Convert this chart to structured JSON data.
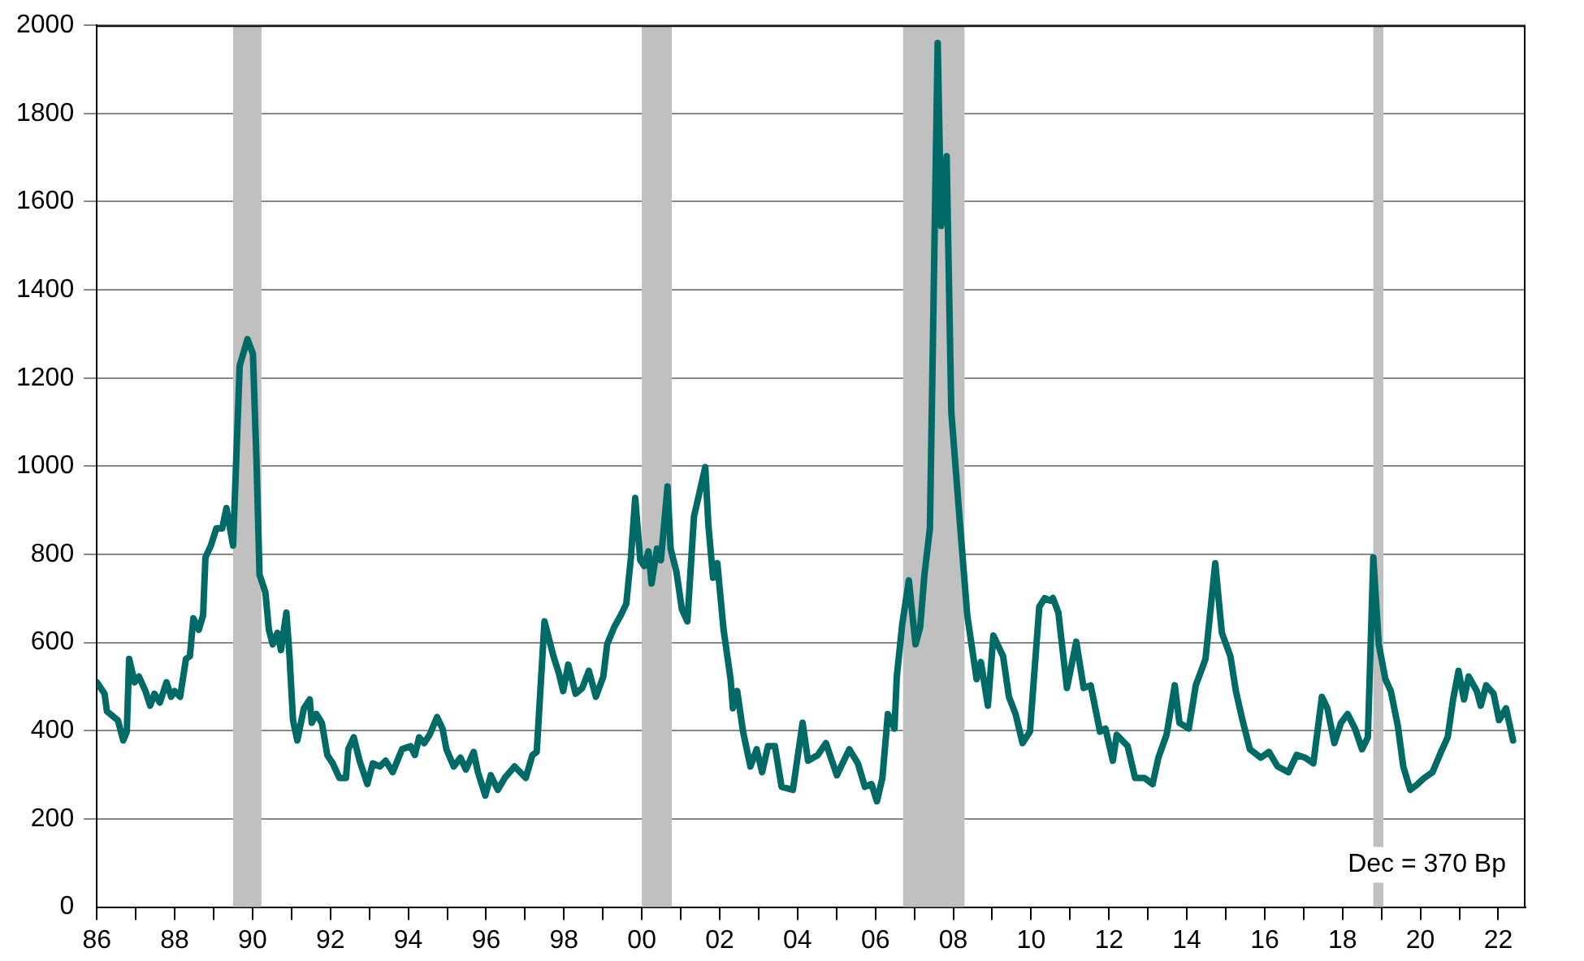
{
  "chart_data": {
    "type": "line",
    "color": "#006b66",
    "marker": "none",
    "grid": "y",
    "x": [
      1986.0,
      1986.2,
      1986.26,
      1986.54,
      1986.68,
      1986.77,
      1986.83,
      1986.97,
      1987.08,
      1987.25,
      1987.37,
      1987.48,
      1987.62,
      1987.79,
      1987.91,
      1988.0,
      1988.14,
      1988.29,
      1988.39,
      1988.48,
      1988.62,
      1988.73,
      1988.79,
      1988.93,
      1989.07,
      1989.22,
      1989.33,
      1989.5,
      1989.67,
      1989.87,
      1990.01,
      1990.1,
      1990.18,
      1990.33,
      1990.42,
      1990.52,
      1990.64,
      1990.73,
      1990.87,
      1990.95,
      1991.04,
      1991.15,
      1991.32,
      1991.47,
      1991.52,
      1991.64,
      1991.78,
      1991.92,
      1992.06,
      1992.23,
      1992.4,
      1992.46,
      1992.6,
      1992.75,
      1992.95,
      1993.09,
      1993.27,
      1993.42,
      1993.6,
      1993.84,
      1994.06,
      1994.17,
      1994.28,
      1994.41,
      1994.55,
      1994.74,
      1994.88,
      1994.98,
      1995.17,
      1995.34,
      1995.48,
      1995.68,
      1995.79,
      1995.98,
      1996.12,
      1996.3,
      1996.48,
      1996.73,
      1997.02,
      1997.19,
      1997.3,
      1997.5,
      1997.73,
      1997.87,
      1997.98,
      1998.11,
      1998.3,
      1998.47,
      1998.64,
      1998.82,
      1999.01,
      1999.11,
      1999.29,
      1999.46,
      1999.6,
      1999.72,
      1999.83,
      1999.96,
      2000.06,
      2000.17,
      2000.25,
      2000.39,
      2000.49,
      2000.66,
      2000.74,
      2000.89,
      2001.03,
      2001.17,
      2001.34,
      2001.63,
      2001.71,
      2001.83,
      2001.94,
      2002.1,
      2002.28,
      2002.34,
      2002.45,
      2002.6,
      2002.79,
      2002.95,
      2003.09,
      2003.24,
      2003.42,
      2003.59,
      2003.88,
      2004.13,
      2004.27,
      2004.52,
      2004.73,
      2005.01,
      2005.33,
      2005.55,
      2005.73,
      2005.9,
      2006.04,
      2006.18,
      2006.32,
      2006.49,
      2006.55,
      2006.69,
      2006.86,
      2007.03,
      2007.15,
      2007.26,
      2007.4,
      2007.6,
      2007.69,
      2007.83,
      2007.95,
      2008.17,
      2008.36,
      2008.6,
      2008.71,
      2008.89,
      2009.03,
      2009.28,
      2009.43,
      2009.6,
      2009.78,
      2009.97,
      2010.21,
      2010.35,
      2010.49,
      2010.56,
      2010.7,
      2010.92,
      2011.16,
      2011.35,
      2011.53,
      2011.77,
      2011.91,
      2012.1,
      2012.2,
      2012.48,
      2012.67,
      2012.91,
      2013.12,
      2013.27,
      2013.48,
      2013.69,
      2013.81,
      2014.05,
      2014.23,
      2014.48,
      2014.73,
      2014.9,
      2015.12,
      2015.26,
      2015.43,
      2015.62,
      2015.9,
      2016.11,
      2016.33,
      2016.61,
      2016.82,
      2017.04,
      2017.25,
      2017.47,
      2017.61,
      2017.79,
      2017.96,
      2018.13,
      2018.32,
      2018.5,
      2018.65,
      2018.79,
      2018.93,
      2019.1,
      2019.24,
      2019.42,
      2019.56,
      2019.74,
      2019.93,
      2020.1,
      2020.31,
      2020.53,
      2020.7,
      2020.84,
      2020.98,
      2021.12,
      2021.24,
      2021.45,
      2021.55,
      2021.69,
      2021.88,
      2022.02,
      2022.2,
      2022.38
    ],
    "values": [
      510,
      484,
      444,
      424,
      378,
      398,
      563,
      510,
      523,
      490,
      457,
      484,
      464,
      510,
      477,
      490,
      477,
      563,
      569,
      655,
      629,
      662,
      793,
      820,
      859,
      859,
      905,
      820,
      1228,
      1288,
      1255,
      1017,
      754,
      714,
      629,
      596,
      622,
      583,
      668,
      569,
      424,
      378,
      451,
      471,
      418,
      438,
      418,
      345,
      326,
      293,
      293,
      358,
      385,
      332,
      279,
      326,
      319,
      332,
      306,
      358,
      365,
      345,
      385,
      372,
      391,
      431,
      405,
      358,
      319,
      339,
      312,
      352,
      306,
      253,
      299,
      266,
      293,
      319,
      293,
      345,
      352,
      648,
      569,
      530,
      490,
      550,
      484,
      497,
      536,
      477,
      523,
      596,
      635,
      662,
      688,
      793,
      928,
      787,
      774,
      807,
      734,
      813,
      787,
      954,
      813,
      760,
      675,
      648,
      886,
      998,
      866,
      747,
      780,
      629,
      517,
      451,
      490,
      398,
      319,
      358,
      306,
      365,
      365,
      273,
      266,
      418,
      332,
      345,
      372,
      299,
      358,
      326,
      273,
      279,
      240,
      293,
      438,
      405,
      523,
      642,
      741,
      596,
      635,
      754,
      859,
      1960,
      1545,
      1703,
      1123,
      872,
      662,
      517,
      556,
      457,
      616,
      569,
      477,
      438,
      372,
      398,
      681,
      701,
      695,
      701,
      668,
      497,
      602,
      497,
      503,
      398,
      405,
      332,
      391,
      365,
      293,
      293,
      279,
      339,
      391,
      503,
      418,
      405,
      503,
      563,
      780,
      622,
      569,
      490,
      424,
      358,
      339,
      352,
      319,
      306,
      345,
      339,
      326,
      477,
      451,
      372,
      418,
      438,
      405,
      358,
      385,
      793,
      596,
      517,
      490,
      411,
      319,
      266,
      279,
      293,
      306,
      352,
      385,
      471,
      536,
      471,
      523,
      490,
      457,
      503,
      484,
      424,
      451,
      378
    ],
    "xlim": [
      1986,
      2022.7
    ],
    "xticks": [
      {
        "value": 1986,
        "label": "86"
      },
      {
        "value": 1987,
        "label": null
      },
      {
        "value": 1988,
        "label": "88"
      },
      {
        "value": 1989,
        "label": null
      },
      {
        "value": 1990,
        "label": "90"
      },
      {
        "value": 1991,
        "label": null
      },
      {
        "value": 1992,
        "label": "92"
      },
      {
        "value": 1993,
        "label": null
      },
      {
        "value": 1994,
        "label": "94"
      },
      {
        "value": 1995,
        "label": null
      },
      {
        "value": 1996,
        "label": "96"
      },
      {
        "value": 1997,
        "label": null
      },
      {
        "value": 1998,
        "label": "98"
      },
      {
        "value": 1999,
        "label": null
      },
      {
        "value": 2000,
        "label": "00"
      },
      {
        "value": 2001,
        "label": null
      },
      {
        "value": 2002,
        "label": "02"
      },
      {
        "value": 2003,
        "label": null
      },
      {
        "value": 2004,
        "label": "04"
      },
      {
        "value": 2005,
        "label": null
      },
      {
        "value": 2006,
        "label": "06"
      },
      {
        "value": 2007,
        "label": null
      },
      {
        "value": 2008,
        "label": "08"
      },
      {
        "value": 2009,
        "label": null
      },
      {
        "value": 2010,
        "label": "10"
      },
      {
        "value": 2011,
        "label": null
      },
      {
        "value": 2012,
        "label": "12"
      },
      {
        "value": 2013,
        "label": null
      },
      {
        "value": 2014,
        "label": "14"
      },
      {
        "value": 2015,
        "label": null
      },
      {
        "value": 2016,
        "label": "16"
      },
      {
        "value": 2017,
        "label": null
      },
      {
        "value": 2018,
        "label": "18"
      },
      {
        "value": 2019,
        "label": null
      },
      {
        "value": 2020,
        "label": "20"
      },
      {
        "value": 2021,
        "label": null
      },
      {
        "value": 2022,
        "label": "22"
      }
    ],
    "ylim": [
      0,
      2000
    ],
    "yticks": [
      0,
      200,
      400,
      600,
      800,
      1000,
      1200,
      1400,
      1600,
      1800,
      2000
    ],
    "bands": [
      {
        "axis": "x",
        "from": 1989.5,
        "to": 1990.23,
        "color": "#c0c0c0"
      },
      {
        "axis": "x",
        "from": 2000.0,
        "to": 2000.77,
        "color": "#c0c0c0"
      },
      {
        "axis": "x",
        "from": 2006.71,
        "to": 2008.29,
        "color": "#c0c0c0"
      },
      {
        "axis": "x",
        "from": 2018.79,
        "to": 2019.05,
        "color": "#c0c0c0"
      }
    ],
    "annotations": [
      "Dec = 370 Bp"
    ]
  }
}
